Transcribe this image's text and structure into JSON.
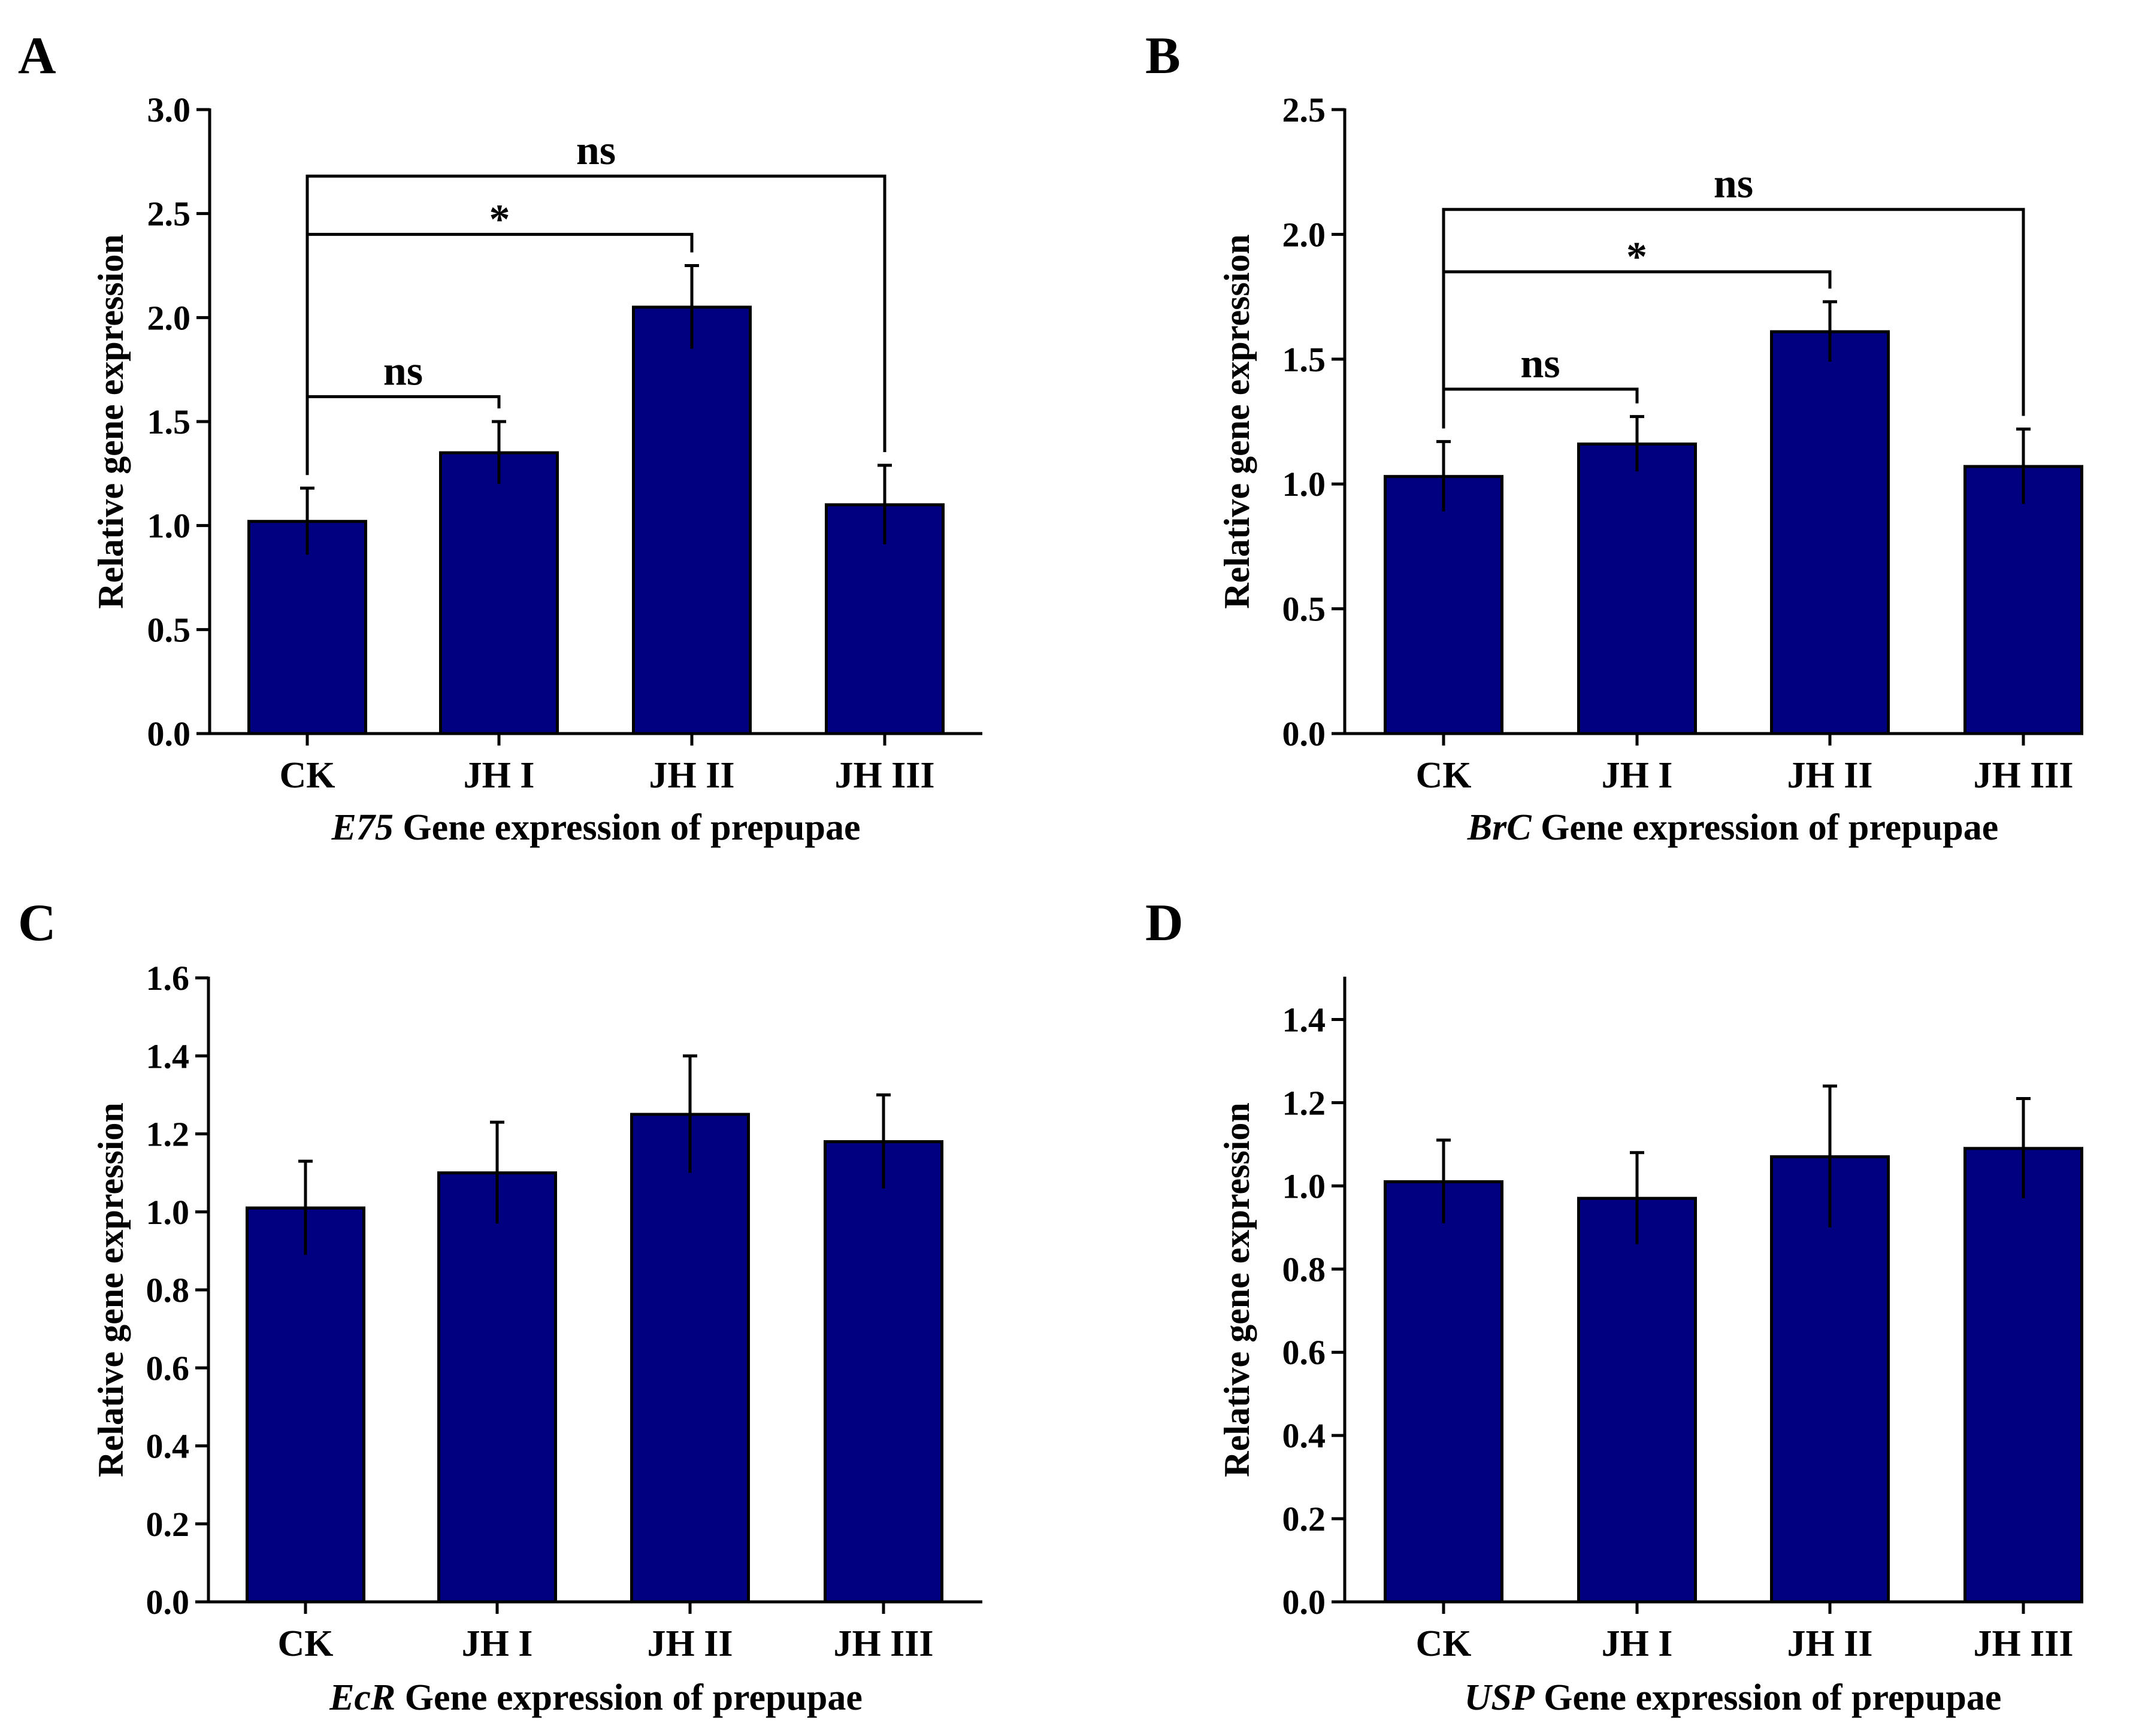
{
  "colors": {
    "bar": "#000080",
    "axis": "#000000",
    "background": "#ffffff"
  },
  "chart_data": [
    {
      "type": "bar",
      "panel": "A",
      "categories": [
        "CK",
        "JH I",
        "JH II",
        "JH III"
      ],
      "values": [
        1.02,
        1.35,
        2.05,
        1.1
      ],
      "errors": [
        0.16,
        0.15,
        0.2,
        0.19
      ],
      "ylim": [
        0,
        3.0
      ],
      "yticks": [
        {
          "value": 0,
          "label": "0.0"
        },
        {
          "value": 0.5,
          "label": "0.5"
        },
        {
          "value": 1.0,
          "label": "1.0"
        },
        {
          "value": 1.5,
          "label": "1.5"
        },
        {
          "value": 2.0,
          "label": "2.0"
        },
        {
          "value": 2.5,
          "label": "2.5"
        },
        {
          "value": 3.0,
          "label": "3.0"
        }
      ],
      "ylabel": "Relative gene expression",
      "xlabel_gene": "E75",
      "xlabel_rest": " Gene expression of prepupae",
      "significance": [
        {
          "from": 0,
          "to": 1,
          "label": "ns",
          "level": 1.62
        },
        {
          "from": 0,
          "to": 2,
          "label": "*",
          "level": 2.4
        },
        {
          "from": 0,
          "to": 3,
          "label": "ns",
          "level": 2.68
        }
      ]
    },
    {
      "type": "bar",
      "panel": "B",
      "categories": [
        "CK",
        "JH I",
        "JH II",
        "JH III"
      ],
      "values": [
        1.03,
        1.16,
        1.61,
        1.07
      ],
      "errors": [
        0.14,
        0.11,
        0.12,
        0.15
      ],
      "ylim": [
        0,
        2.5
      ],
      "yticks": [
        {
          "value": 0,
          "label": "0.0"
        },
        {
          "value": 0.5,
          "label": "0.5"
        },
        {
          "value": 1.0,
          "label": "1.0"
        },
        {
          "value": 1.5,
          "label": "1.5"
        },
        {
          "value": 2.0,
          "label": "2.0"
        },
        {
          "value": 2.5,
          "label": "2.5"
        }
      ],
      "ylabel": "Relative gene expression",
      "xlabel_gene": "BrC",
      "xlabel_rest": " Gene expression of prepupae",
      "significance": [
        {
          "from": 0,
          "to": 1,
          "label": "ns",
          "level": 1.38
        },
        {
          "from": 0,
          "to": 2,
          "label": "*",
          "level": 1.85
        },
        {
          "from": 0,
          "to": 3,
          "label": "ns",
          "level": 2.1
        }
      ]
    },
    {
      "type": "bar",
      "panel": "C",
      "categories": [
        "CK",
        "JH I",
        "JH II",
        "JH III"
      ],
      "values": [
        1.01,
        1.1,
        1.25,
        1.18
      ],
      "errors": [
        0.12,
        0.13,
        0.15,
        0.12
      ],
      "ylim": [
        0,
        1.6
      ],
      "yticks": [
        {
          "value": 0,
          "label": "0.0"
        },
        {
          "value": 0.2,
          "label": "0.2"
        },
        {
          "value": 0.4,
          "label": "0.4"
        },
        {
          "value": 0.6,
          "label": "0.6"
        },
        {
          "value": 0.8,
          "label": "0.8"
        },
        {
          "value": 1.0,
          "label": "1.0"
        },
        {
          "value": 1.2,
          "label": "1.2"
        },
        {
          "value": 1.4,
          "label": "1.4"
        },
        {
          "value": 1.6,
          "label": "1.6"
        }
      ],
      "ylabel": "Relative gene expression",
      "xlabel_gene": "EcR",
      "xlabel_rest": " Gene expression of prepupae",
      "significance": []
    },
    {
      "type": "bar",
      "panel": "D",
      "categories": [
        "CK",
        "JH I",
        "JH II",
        "JH III"
      ],
      "values": [
        1.01,
        0.97,
        1.07,
        1.09
      ],
      "errors": [
        0.1,
        0.11,
        0.17,
        0.12
      ],
      "ylim": [
        0,
        1.5
      ],
      "yticks": [
        {
          "value": 0,
          "label": "0.0"
        },
        {
          "value": 0.2,
          "label": "0.2"
        },
        {
          "value": 0.4,
          "label": "0.4"
        },
        {
          "value": 0.6,
          "label": "0.6"
        },
        {
          "value": 0.8,
          "label": "0.8"
        },
        {
          "value": 1.0,
          "label": "1.0"
        },
        {
          "value": 1.2,
          "label": "1.2"
        },
        {
          "value": 1.4,
          "label": "1.4"
        }
      ],
      "ylabel": "Relative gene expression",
      "xlabel_gene": "USP",
      "xlabel_rest": " Gene expression of prepupae",
      "significance": []
    }
  ]
}
